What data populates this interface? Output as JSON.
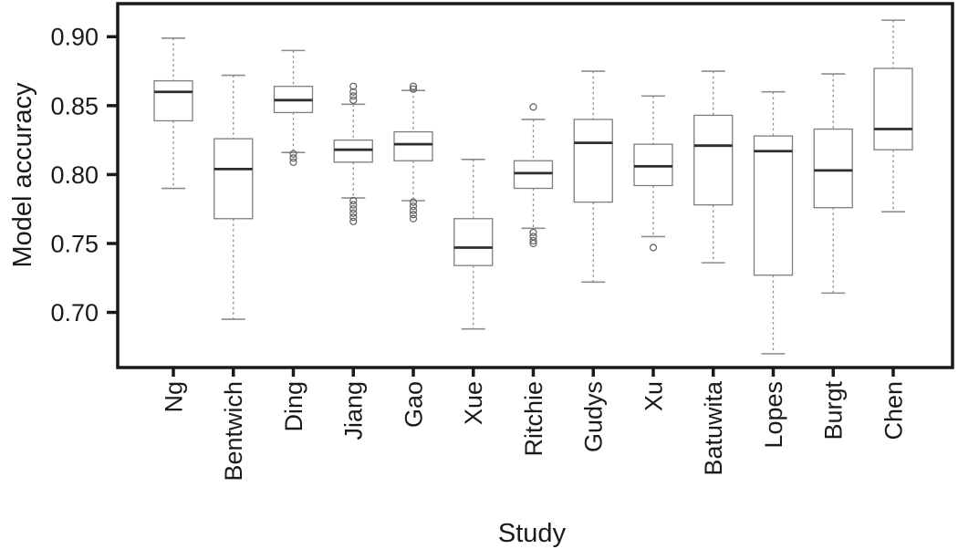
{
  "chart_data": {
    "type": "boxplot",
    "title": "",
    "xlabel": "Study",
    "ylabel": "Model accuracy",
    "ylim": [
      0.66,
      0.924
    ],
    "yticks": [
      0.9,
      0.85,
      0.8,
      0.75,
      0.7
    ],
    "ytick_decimals": 2,
    "grid": false,
    "legend": "none",
    "categories": [
      "Ng",
      "Bentwich",
      "Ding",
      "Jiang",
      "Gao",
      "Xue",
      "Ritchie",
      "Gudys",
      "Xu",
      "Batuwita",
      "Lopes",
      "Burgt",
      "Chen"
    ],
    "series": [
      {
        "study": "Ng",
        "whisker_low": 0.79,
        "q1": 0.839,
        "median": 0.86,
        "q3": 0.868,
        "whisker_high": 0.899,
        "outliers": []
      },
      {
        "study": "Bentwich",
        "whisker_low": 0.695,
        "q1": 0.768,
        "median": 0.804,
        "q3": 0.826,
        "whisker_high": 0.872,
        "outliers": []
      },
      {
        "study": "Ding",
        "whisker_low": 0.816,
        "q1": 0.845,
        "median": 0.854,
        "q3": 0.864,
        "whisker_high": 0.89,
        "outliers": [
          0.815,
          0.812,
          0.809
        ]
      },
      {
        "study": "Jiang",
        "whisker_low": 0.783,
        "q1": 0.809,
        "median": 0.818,
        "q3": 0.825,
        "whisker_high": 0.851,
        "outliers": [
          0.864,
          0.86,
          0.857,
          0.854,
          0.781,
          0.778,
          0.775,
          0.772,
          0.769,
          0.766
        ]
      },
      {
        "study": "Gao",
        "whisker_low": 0.781,
        "q1": 0.81,
        "median": 0.822,
        "q3": 0.831,
        "whisker_high": 0.861,
        "outliers": [
          0.864,
          0.862,
          0.78,
          0.777,
          0.774,
          0.771,
          0.768
        ]
      },
      {
        "study": "Xue",
        "whisker_low": 0.688,
        "q1": 0.734,
        "median": 0.747,
        "q3": 0.768,
        "whisker_high": 0.811,
        "outliers": []
      },
      {
        "study": "Ritchie",
        "whisker_low": 0.761,
        "q1": 0.79,
        "median": 0.801,
        "q3": 0.81,
        "whisker_high": 0.84,
        "outliers": [
          0.849,
          0.758,
          0.755,
          0.752,
          0.75
        ]
      },
      {
        "study": "Gudys",
        "whisker_low": 0.722,
        "q1": 0.78,
        "median": 0.823,
        "q3": 0.84,
        "whisker_high": 0.875,
        "outliers": []
      },
      {
        "study": "Xu",
        "whisker_low": 0.755,
        "q1": 0.792,
        "median": 0.806,
        "q3": 0.822,
        "whisker_high": 0.857,
        "outliers": [
          0.747
        ]
      },
      {
        "study": "Batuwita",
        "whisker_low": 0.736,
        "q1": 0.778,
        "median": 0.821,
        "q3": 0.843,
        "whisker_high": 0.875,
        "outliers": []
      },
      {
        "study": "Lopes",
        "whisker_low": 0.67,
        "q1": 0.727,
        "median": 0.817,
        "q3": 0.828,
        "whisker_high": 0.86,
        "outliers": []
      },
      {
        "study": "Burgt",
        "whisker_low": 0.714,
        "q1": 0.776,
        "median": 0.803,
        "q3": 0.833,
        "whisker_high": 0.873,
        "outliers": []
      },
      {
        "study": "Chen",
        "whisker_low": 0.773,
        "q1": 0.818,
        "median": 0.833,
        "q3": 0.877,
        "whisker_high": 0.912,
        "outliers": []
      }
    ]
  },
  "colors": {
    "background": "#ffffff",
    "frame": "#1a1a1a",
    "tick": "#1a1a1a",
    "text": "#1a1a1a",
    "box_outline": "#7d7d7d",
    "median": "#2e2e2e",
    "whisker": "#8c8c8c",
    "whisker_cap": "#8c8c8c",
    "outlier": "#606060"
  }
}
